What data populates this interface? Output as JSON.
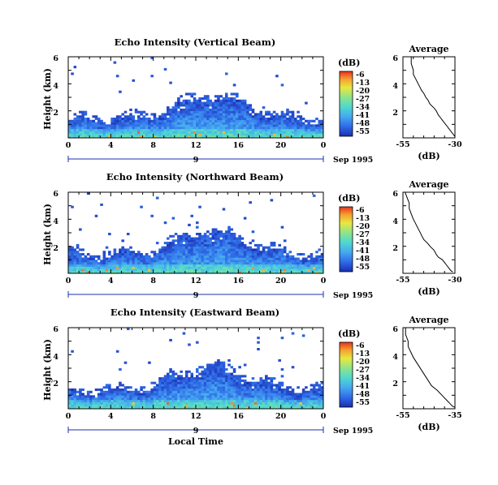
{
  "figure": {
    "xaxis_label": "Local Time",
    "date_label": "Sep 1995",
    "colorbar_unit": "(dB)",
    "colorbar_ticks": [
      "-6",
      "-13",
      "-20",
      "-27",
      "-34",
      "-41",
      "-48",
      "-55"
    ],
    "x_ticks": [
      "0",
      "4",
      "8",
      "12",
      "16",
      "20",
      "0"
    ],
    "y_ticks": [
      "2",
      "4",
      "6"
    ],
    "ylabel": "Height (km)"
  },
  "chart_data": [
    {
      "type": "heatmap",
      "title": "Echo Intensity (Vertical Beam)",
      "day_label": "9",
      "x_range_hours": [
        0,
        24
      ],
      "y_range_km": [
        0,
        6
      ],
      "color_range_db": [
        -55,
        -6
      ],
      "profile": {
        "title": "Average",
        "xlabel": "(dB)",
        "x_ticks": [
          "-55",
          "-30"
        ],
        "x_range_db": [
          -55,
          -30
        ],
        "points": [
          [
            -51,
            6.0
          ],
          [
            -51,
            5.5
          ],
          [
            -50,
            5.0
          ],
          [
            -50,
            4.7
          ],
          [
            -49,
            4.4
          ],
          [
            -48,
            4.1
          ],
          [
            -47,
            3.8
          ],
          [
            -46,
            3.5
          ],
          [
            -45,
            3.3
          ],
          [
            -44,
            3.0
          ],
          [
            -43,
            2.8
          ],
          [
            -42,
            2.5
          ],
          [
            -40,
            2.2
          ],
          [
            -39,
            2.0
          ],
          [
            -38,
            1.7
          ],
          [
            -37,
            1.5
          ],
          [
            -36,
            1.3
          ],
          [
            -35,
            1.1
          ],
          [
            -34,
            0.9
          ],
          [
            -33,
            0.7
          ],
          [
            -32,
            0.5
          ],
          [
            -31,
            0.3
          ],
          [
            -30,
            0.1
          ]
        ]
      }
    },
    {
      "type": "heatmap",
      "title": "Echo Intensity (Northward Beam)",
      "day_label": "9",
      "x_range_hours": [
        0,
        24
      ],
      "y_range_km": [
        0,
        6
      ],
      "color_range_db": [
        -55,
        -6
      ],
      "profile": {
        "title": "Average",
        "xlabel": "(dB)",
        "x_ticks": [
          "-55",
          "-30"
        ],
        "x_range_db": [
          -55,
          -30
        ],
        "points": [
          [
            -54,
            6.0
          ],
          [
            -53,
            5.6
          ],
          [
            -52,
            5.2
          ],
          [
            -52,
            4.8
          ],
          [
            -51,
            4.4
          ],
          [
            -50,
            4.0
          ],
          [
            -49,
            3.7
          ],
          [
            -48,
            3.4
          ],
          [
            -47,
            3.1
          ],
          [
            -46,
            2.8
          ],
          [
            -45,
            2.5
          ],
          [
            -43,
            2.2
          ],
          [
            -42,
            2.0
          ],
          [
            -40,
            1.7
          ],
          [
            -39,
            1.4
          ],
          [
            -38,
            1.2
          ],
          [
            -36,
            1.0
          ],
          [
            -35,
            0.8
          ],
          [
            -34,
            0.6
          ],
          [
            -33,
            0.4
          ],
          [
            -32,
            0.2
          ],
          [
            -31,
            0.1
          ]
        ]
      }
    },
    {
      "type": "heatmap",
      "title": "Echo Intensity (Eastward Beam)",
      "day_label": "9",
      "x_range_hours": [
        0,
        24
      ],
      "y_range_km": [
        0,
        6
      ],
      "color_range_db": [
        -55,
        -6
      ],
      "profile": {
        "title": "Average",
        "xlabel": "(dB)",
        "x_ticks": [
          "-55",
          "-35"
        ],
        "x_range_db": [
          -55,
          -35
        ],
        "points": [
          [
            -54,
            6.0
          ],
          [
            -54,
            5.5
          ],
          [
            -53,
            5.0
          ],
          [
            -53,
            4.6
          ],
          [
            -52,
            4.2
          ],
          [
            -51,
            3.8
          ],
          [
            -50,
            3.5
          ],
          [
            -49,
            3.2
          ],
          [
            -48,
            2.9
          ],
          [
            -47,
            2.6
          ],
          [
            -46,
            2.3
          ],
          [
            -45,
            2.0
          ],
          [
            -44,
            1.7
          ],
          [
            -42,
            1.4
          ],
          [
            -41,
            1.2
          ],
          [
            -40,
            1.0
          ],
          [
            -39,
            0.8
          ],
          [
            -38,
            0.6
          ],
          [
            -37,
            0.4
          ],
          [
            -36,
            0.2
          ],
          [
            -35,
            0.1
          ]
        ]
      }
    }
  ]
}
